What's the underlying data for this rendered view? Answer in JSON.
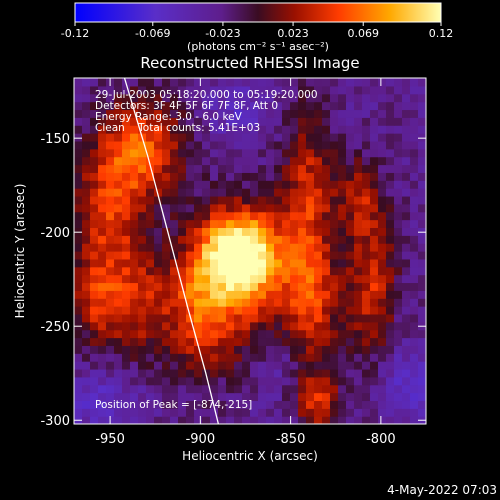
{
  "chart_data": {
    "type": "heatmap",
    "title": "Reconstructed RHESSI Image",
    "xlabel": "Heliocentric X (arcsec)",
    "ylabel": "Heliocentric Y (arcsec)",
    "xlim": [
      -970,
      -775
    ],
    "ylim": [
      -302,
      -118
    ],
    "x_ticks": [
      -950,
      -900,
      -850,
      -800
    ],
    "y_ticks": [
      -300,
      -250,
      -200,
      -150
    ],
    "colorbar": {
      "min": -0.12,
      "max": 0.12,
      "ticks": [
        "-0.12",
        "-0.069",
        "-0.023",
        "0.023",
        "0.069",
        "0.12"
      ],
      "unit_label": "(photons cm⁻² s⁻¹ asec⁻²)"
    },
    "annotations": [
      "29-Jul-2003 05:18:20.000 to 05:19:20.000",
      "Detectors: 3F 4F 5F 6F 7F 8F, Att 0",
      "Energy Range: 3.0 - 6.0 keV",
      "Clean    Total counts: 5.41E+03"
    ],
    "peak": {
      "label": "Position of Peak = [-874,-215]",
      "x": -874,
      "y": -215
    },
    "limb_line": [
      [
        -942,
        -118
      ],
      [
        -929,
        -160
      ],
      [
        -918,
        -200
      ],
      [
        -907,
        -240
      ],
      [
        -897,
        -275
      ],
      [
        -890,
        -302
      ]
    ],
    "intensity_blobs": [
      {
        "x": -880,
        "y": -210,
        "amp": 0.115,
        "sx": 14,
        "sy": 14
      },
      {
        "x": -870,
        "y": -222,
        "amp": 0.08,
        "sx": 20,
        "sy": 26
      },
      {
        "x": -900,
        "y": -240,
        "amp": 0.075,
        "sx": 14,
        "sy": 24
      },
      {
        "x": -930,
        "y": -155,
        "amp": 0.078,
        "sx": 16,
        "sy": 18
      },
      {
        "x": -950,
        "y": -188,
        "amp": 0.07,
        "sx": 14,
        "sy": 28
      },
      {
        "x": -937,
        "y": -238,
        "amp": 0.06,
        "sx": 14,
        "sy": 20
      },
      {
        "x": -840,
        "y": -178,
        "amp": 0.062,
        "sx": 10,
        "sy": 32
      },
      {
        "x": -837,
        "y": -240,
        "amp": 0.058,
        "sx": 10,
        "sy": 22
      },
      {
        "x": -835,
        "y": -290,
        "amp": 0.07,
        "sx": 9,
        "sy": 10
      },
      {
        "x": -805,
        "y": -228,
        "amp": 0.066,
        "sx": 10,
        "sy": 28
      },
      {
        "x": -812,
        "y": -180,
        "amp": 0.05,
        "sx": 9,
        "sy": 14
      },
      {
        "x": -960,
        "y": -235,
        "amp": 0.045,
        "sx": 8,
        "sy": 16
      },
      {
        "x": -858,
        "y": -268,
        "amp": -0.02,
        "sx": 8,
        "sy": 16
      },
      {
        "x": -955,
        "y": -290,
        "amp": -0.035,
        "sx": 14,
        "sy": 10
      },
      {
        "x": -785,
        "y": -280,
        "amp": -0.035,
        "sx": 12,
        "sy": 14
      },
      {
        "x": -880,
        "y": -135,
        "amp": -0.03,
        "sx": 12,
        "sy": 12
      }
    ],
    "background_level": -0.028
  },
  "footer": {
    "timestamp": "4-May-2022 07:03"
  }
}
